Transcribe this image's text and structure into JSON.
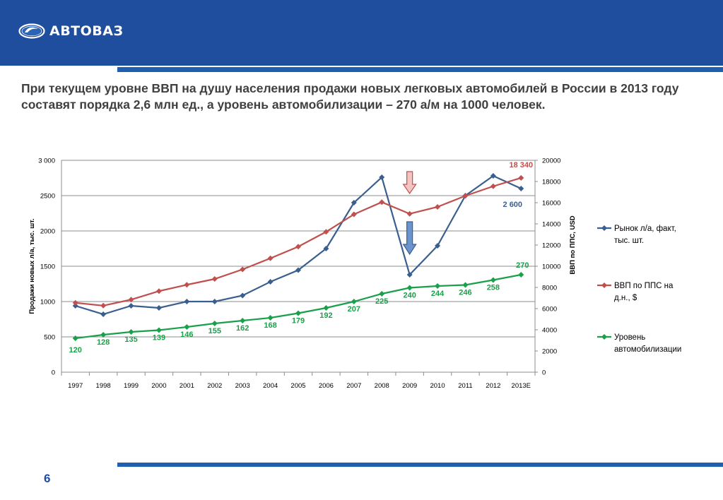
{
  "header": {
    "logo_text": "АВТОВАЗ"
  },
  "title": "При текущем уровне ВВП на душу населения продажи новых легковых автомобилей в России в 2013 году составят порядка 2,6 млн ед., а уровень автомобилизации – 270 а/м на 1000 человек.",
  "page_number": "6",
  "colors": {
    "header": "#1f4e9e",
    "market": "#3a5f8f",
    "gdp": "#c0504d",
    "motorization": "#1aa04a"
  },
  "chart_data": {
    "type": "line",
    "categories": [
      "1997",
      "1998",
      "1999",
      "2000",
      "2001",
      "2002",
      "2003",
      "2004",
      "2005",
      "2006",
      "2007",
      "2008",
      "2009",
      "2010",
      "2011",
      "2012",
      "2013E"
    ],
    "y_left": {
      "label": "Продажи новых л/а, тыс. шт.",
      "range": [
        0,
        3000
      ],
      "ticks": [
        "0",
        "500",
        "1000",
        "1500",
        "2000",
        "2500",
        "3 000"
      ]
    },
    "y_right": {
      "label": "ВВП по ППС, USD",
      "range": [
        0,
        20000
      ],
      "ticks": [
        "0",
        "2000",
        "4000",
        "6000",
        "8000",
        "10000",
        "12000",
        "14000",
        "16000",
        "18000",
        "20000"
      ]
    },
    "series": [
      {
        "name": "Рынок л/а, факт, тыс. шт.",
        "legend_lines": [
          "Рынок л/а, факт,",
          "тыс. шт."
        ],
        "axis": "left",
        "values": [
          940,
          820,
          940,
          910,
          1000,
          1000,
          1085,
          1280,
          1445,
          1750,
          2400,
          2760,
          1380,
          1790,
          2500,
          2780,
          2600
        ],
        "end_label": "2 600"
      },
      {
        "name": "ВВП по ППС на д.н., $",
        "legend_lines": [
          "ВВП по ППС на",
          "д.н., $"
        ],
        "axis": "right",
        "values": [
          6550,
          6280,
          6850,
          7650,
          8250,
          8800,
          9700,
          10750,
          11850,
          13250,
          14900,
          16050,
          14950,
          15600,
          16650,
          17550,
          18340
        ],
        "end_label": "18 340"
      },
      {
        "name": "Уровень автомобилизации",
        "legend_lines": [
          "Уровень",
          "автомобилизации"
        ],
        "axis": "left",
        "values": [
          480,
          530,
          570,
          595,
          640,
          690,
          730,
          770,
          835,
          910,
          1000,
          1110,
          1195,
          1220,
          1235,
          1305,
          1380
        ],
        "data_labels": [
          "120",
          "128",
          "135",
          "139",
          "146",
          "155",
          "162",
          "168",
          "179",
          "192",
          "207",
          "225",
          "240",
          "244",
          "246",
          "258",
          "270"
        ]
      }
    ]
  }
}
